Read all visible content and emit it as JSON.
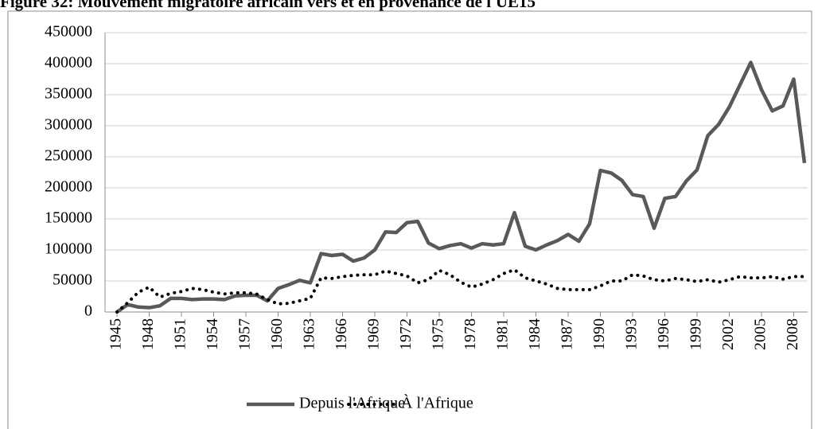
{
  "chart_data": {
    "type": "line",
    "title": "Figure 32: Mouvement migratoire africain vers et en provenance de l'UE15",
    "x": [
      1945,
      1946,
      1947,
      1948,
      1949,
      1950,
      1951,
      1952,
      1953,
      1954,
      1955,
      1956,
      1957,
      1958,
      1959,
      1960,
      1961,
      1962,
      1963,
      1964,
      1965,
      1966,
      1967,
      1968,
      1969,
      1970,
      1971,
      1972,
      1973,
      1974,
      1975,
      1976,
      1977,
      1978,
      1979,
      1980,
      1981,
      1982,
      1983,
      1984,
      1985,
      1986,
      1987,
      1988,
      1989,
      1990,
      1991,
      1992,
      1993,
      1994,
      1995,
      1996,
      1997,
      1998,
      1999,
      2000,
      2001,
      2002,
      2003,
      2004,
      2005,
      2006,
      2007,
      2008,
      2009
    ],
    "xlim": [
      1945,
      2009
    ],
    "xticks": [
      1945,
      1948,
      1951,
      1954,
      1957,
      1960,
      1963,
      1966,
      1969,
      1972,
      1975,
      1978,
      1981,
      1984,
      1987,
      1990,
      1993,
      1996,
      1999,
      2002,
      2005,
      2008
    ],
    "ylim": [
      0,
      450000
    ],
    "yticks": [
      0,
      50000,
      100000,
      150000,
      200000,
      250000,
      300000,
      350000,
      400000,
      450000
    ],
    "grid": true,
    "legend": "bottom",
    "series": [
      {
        "name": "Depuis l'Afrique",
        "color": "#595959",
        "style": "solid",
        "values": [
          0,
          12000,
          8000,
          7000,
          10000,
          22000,
          22000,
          20000,
          21000,
          21000,
          20000,
          26000,
          27000,
          27000,
          18000,
          38000,
          44000,
          51000,
          47000,
          94000,
          91000,
          93000,
          82000,
          87000,
          100000,
          129000,
          128000,
          144000,
          146000,
          111000,
          102000,
          107000,
          110000,
          103000,
          110000,
          108000,
          110000,
          160000,
          106000,
          100000,
          108000,
          115000,
          125000,
          114000,
          142000,
          228000,
          224000,
          212000,
          189000,
          186000,
          135000,
          183000,
          186000,
          211000,
          229000,
          284000,
          302000,
          330000,
          366000,
          402000,
          358000,
          324000,
          332000,
          375000,
          240000
        ]
      },
      {
        "name": "À l'Afrique",
        "color": "#000000",
        "style": "dotted",
        "values": [
          0,
          15000,
          32000,
          40000,
          24000,
          30000,
          33000,
          38000,
          36000,
          32000,
          29000,
          31000,
          31000,
          29000,
          20000,
          13000,
          14000,
          18000,
          22000,
          55000,
          54000,
          57000,
          59000,
          60000,
          60000,
          66000,
          62000,
          58000,
          47000,
          52000,
          67000,
          60000,
          48000,
          40000,
          45000,
          52000,
          62000,
          68000,
          55000,
          50000,
          45000,
          38000,
          36000,
          36000,
          36000,
          42000,
          50000,
          50000,
          60000,
          58000,
          52000,
          50000,
          54000,
          52000,
          49000,
          52000,
          48000,
          52000,
          57000,
          55000,
          55000,
          57000,
          53000,
          57000,
          57000
        ]
      }
    ]
  }
}
